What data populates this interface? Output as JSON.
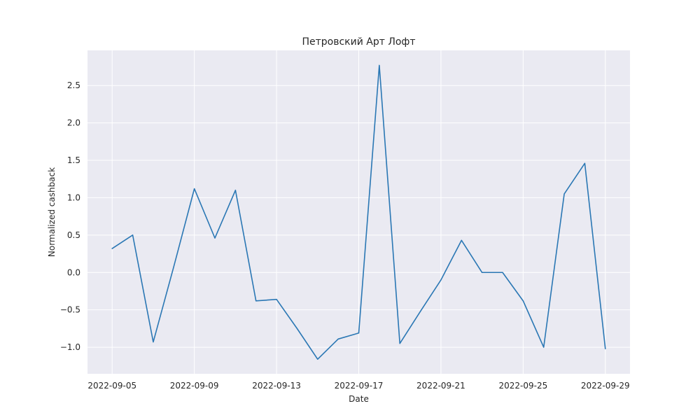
{
  "chart_data": {
    "type": "line",
    "title": "Петровский Арт Лофт",
    "xlabel": "Date",
    "ylabel": "Normalized cashback",
    "x": [
      "2022-09-05",
      "2022-09-06",
      "2022-09-07",
      "2022-09-08",
      "2022-09-09",
      "2022-09-10",
      "2022-09-11",
      "2022-09-12",
      "2022-09-13",
      "2022-09-14",
      "2022-09-15",
      "2022-09-16",
      "2022-09-17",
      "2022-09-18",
      "2022-09-19",
      "2022-09-20",
      "2022-09-21",
      "2022-09-22",
      "2022-09-23",
      "2022-09-24",
      "2022-09-25",
      "2022-09-26",
      "2022-09-27",
      "2022-09-28",
      "2022-09-29"
    ],
    "series": [
      {
        "values": [
          0.32,
          0.5,
          -0.93,
          0.08,
          1.12,
          0.46,
          1.1,
          -0.38,
          -0.36,
          -0.75,
          -1.16,
          -0.89,
          -0.81,
          2.77,
          -0.95,
          -0.52,
          -0.1,
          0.43,
          0.0,
          0.0,
          -0.38,
          -1.0,
          1.05,
          1.46,
          -1.02
        ],
        "color": "#2a77b4"
      }
    ],
    "xticks": [
      "2022-09-05",
      "2022-09-09",
      "2022-09-13",
      "2022-09-17",
      "2022-09-21",
      "2022-09-25",
      "2022-09-29"
    ],
    "yticks": [
      -1.0,
      -0.5,
      0.0,
      0.5,
      1.0,
      1.5,
      2.0,
      2.5
    ],
    "ytick_labels": [
      "−1.0",
      "−0.5",
      "0.0",
      "0.5",
      "1.0",
      "1.5",
      "2.0",
      "2.5"
    ],
    "xlim": [
      "2022-09-03.8",
      "2022-09-30.2"
    ],
    "ylim": [
      -1.355,
      2.97
    ],
    "grid": true,
    "background": "#eaeaf2"
  }
}
